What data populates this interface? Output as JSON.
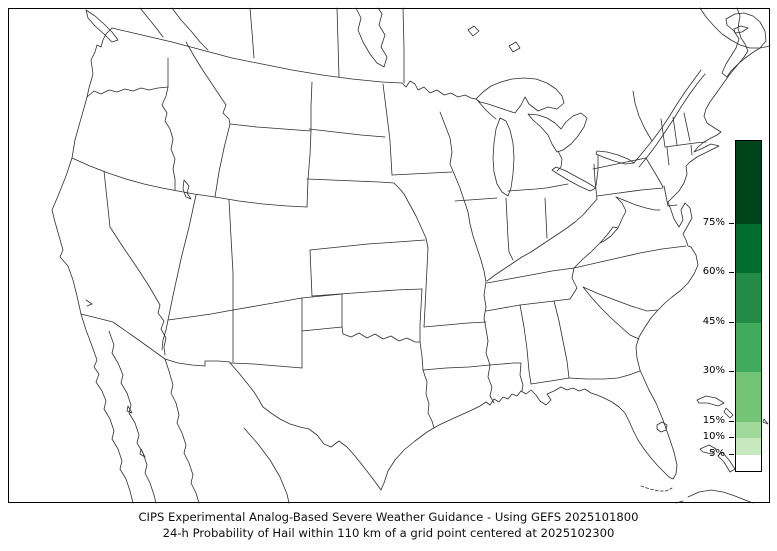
{
  "title": {
    "line1": "CIPS Experimental Analog-Based Severe Weather Guidance - Using GEFS 2025101800",
    "line2": "24-h Probability of Hail within 110 km of a grid point centered at 2025102300"
  },
  "map": {
    "background_color": "#ffffff",
    "line_color": "#2e2e2e",
    "frame_color": "#000000",
    "shaded_regions": "none (no probability contours shown on map)"
  },
  "colorbar": {
    "orientation": "vertical",
    "value_min": 0,
    "value_max": 100,
    "stops": [
      {
        "from": 0,
        "to": 5,
        "color": "#ffffff"
      },
      {
        "from": 5,
        "to": 10,
        "color": "#c7e9c0"
      },
      {
        "from": 10,
        "to": 15,
        "color": "#a1d99b"
      },
      {
        "from": 15,
        "to": 30,
        "color": "#74c476"
      },
      {
        "from": 30,
        "to": 45,
        "color": "#41ab5d"
      },
      {
        "from": 45,
        "to": 60,
        "color": "#238b45"
      },
      {
        "from": 60,
        "to": 75,
        "color": "#006d2c"
      },
      {
        "from": 75,
        "to": 100,
        "color": "#00441b"
      }
    ],
    "ticks": [
      {
        "value": 75,
        "label": "75%"
      },
      {
        "value": 60,
        "label": "60%"
      },
      {
        "value": 45,
        "label": "45%"
      },
      {
        "value": 30,
        "label": "30%"
      },
      {
        "value": 15,
        "label": "15%"
      },
      {
        "value": 10,
        "label": "10%"
      },
      {
        "value": 5,
        "label": "5%"
      }
    ]
  },
  "chart_data": {
    "type": "heatmap",
    "title": "CIPS Experimental Analog-Based Severe Weather Guidance - Using GEFS 2025101800",
    "subtitle": "24-h Probability of Hail within 110 km of a grid point centered at 2025102300",
    "region": "Continental United States (Lambert-conformal style map with state borders, Canada and Mexico partially visible)",
    "legend_position": "right",
    "colorbar_levels_pct": [
      5,
      10,
      15,
      30,
      45,
      60,
      75
    ],
    "colorbar_colors": [
      "#ffffff",
      "#c7e9c0",
      "#a1d99b",
      "#74c476",
      "#41ab5d",
      "#238b45",
      "#006d2c",
      "#00441b"
    ],
    "values": "No shaded probability regions are drawn; hail probability below 5% (effectively 0%) everywhere on the map"
  }
}
